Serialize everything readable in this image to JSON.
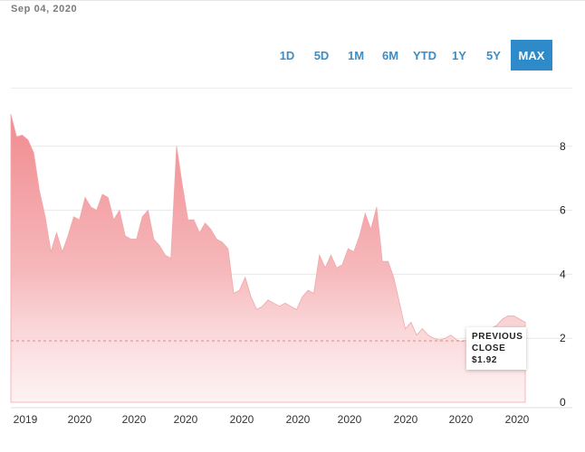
{
  "header": {
    "date": "Sep 04, 2020"
  },
  "range_buttons": [
    {
      "label": "1D",
      "active": false
    },
    {
      "label": "5D",
      "active": false
    },
    {
      "label": "1M",
      "active": false
    },
    {
      "label": "6M",
      "active": false
    },
    {
      "label": "YTD",
      "active": false
    },
    {
      "label": "1Y",
      "active": false
    },
    {
      "label": "5Y",
      "active": false
    },
    {
      "label": "MAX",
      "active": true
    }
  ],
  "tooltip": {
    "line1": "PREVIOUS",
    "line2": "CLOSE",
    "value": "$1.92"
  },
  "colors": {
    "accent": "#2e8ac8",
    "area_top": "#f08b8f",
    "area_bottom": "#fde9ea",
    "prev_close_line": "#d88a8d"
  },
  "chart_data": {
    "type": "area",
    "title": "",
    "xlabel": "",
    "ylabel": "",
    "ylim": [
      0,
      9
    ],
    "y_ticks": [
      0,
      2,
      4,
      6,
      8
    ],
    "x_tick_labels": [
      "2019",
      "2020",
      "2020",
      "2020",
      "2020",
      "2020",
      "2020",
      "2020",
      "2020",
      "2020"
    ],
    "previous_close": 1.92,
    "grid": true,
    "series": [
      {
        "values": [
          9.0,
          8.3,
          8.35,
          8.2,
          7.8,
          6.6,
          5.8,
          4.7,
          5.3,
          4.7,
          5.2,
          5.8,
          5.7,
          6.4,
          6.1,
          6.0,
          6.5,
          6.4,
          5.7,
          6.0,
          5.2,
          5.1,
          5.1,
          5.8,
          6.0,
          5.1,
          4.9,
          4.6,
          4.5,
          8.0,
          6.8,
          5.7,
          5.7,
          5.3,
          5.6,
          5.4,
          5.1,
          5.0,
          4.8,
          3.4,
          3.5,
          3.9,
          3.3,
          2.9,
          3.0,
          3.2,
          3.1,
          3.0,
          3.1,
          3.0,
          2.9,
          3.3,
          3.5,
          3.4,
          4.6,
          4.2,
          4.6,
          4.2,
          4.3,
          4.8,
          4.7,
          5.2,
          5.9,
          5.4,
          6.1,
          4.4,
          4.4,
          3.9,
          3.1,
          2.3,
          2.5,
          2.1,
          2.3,
          2.1,
          2.0,
          1.95,
          2.0,
          2.1,
          1.95,
          1.9,
          1.95,
          1.9,
          1.85,
          1.95,
          2.3,
          2.4,
          2.6,
          2.7,
          2.7,
          2.6,
          2.5
        ]
      }
    ]
  }
}
